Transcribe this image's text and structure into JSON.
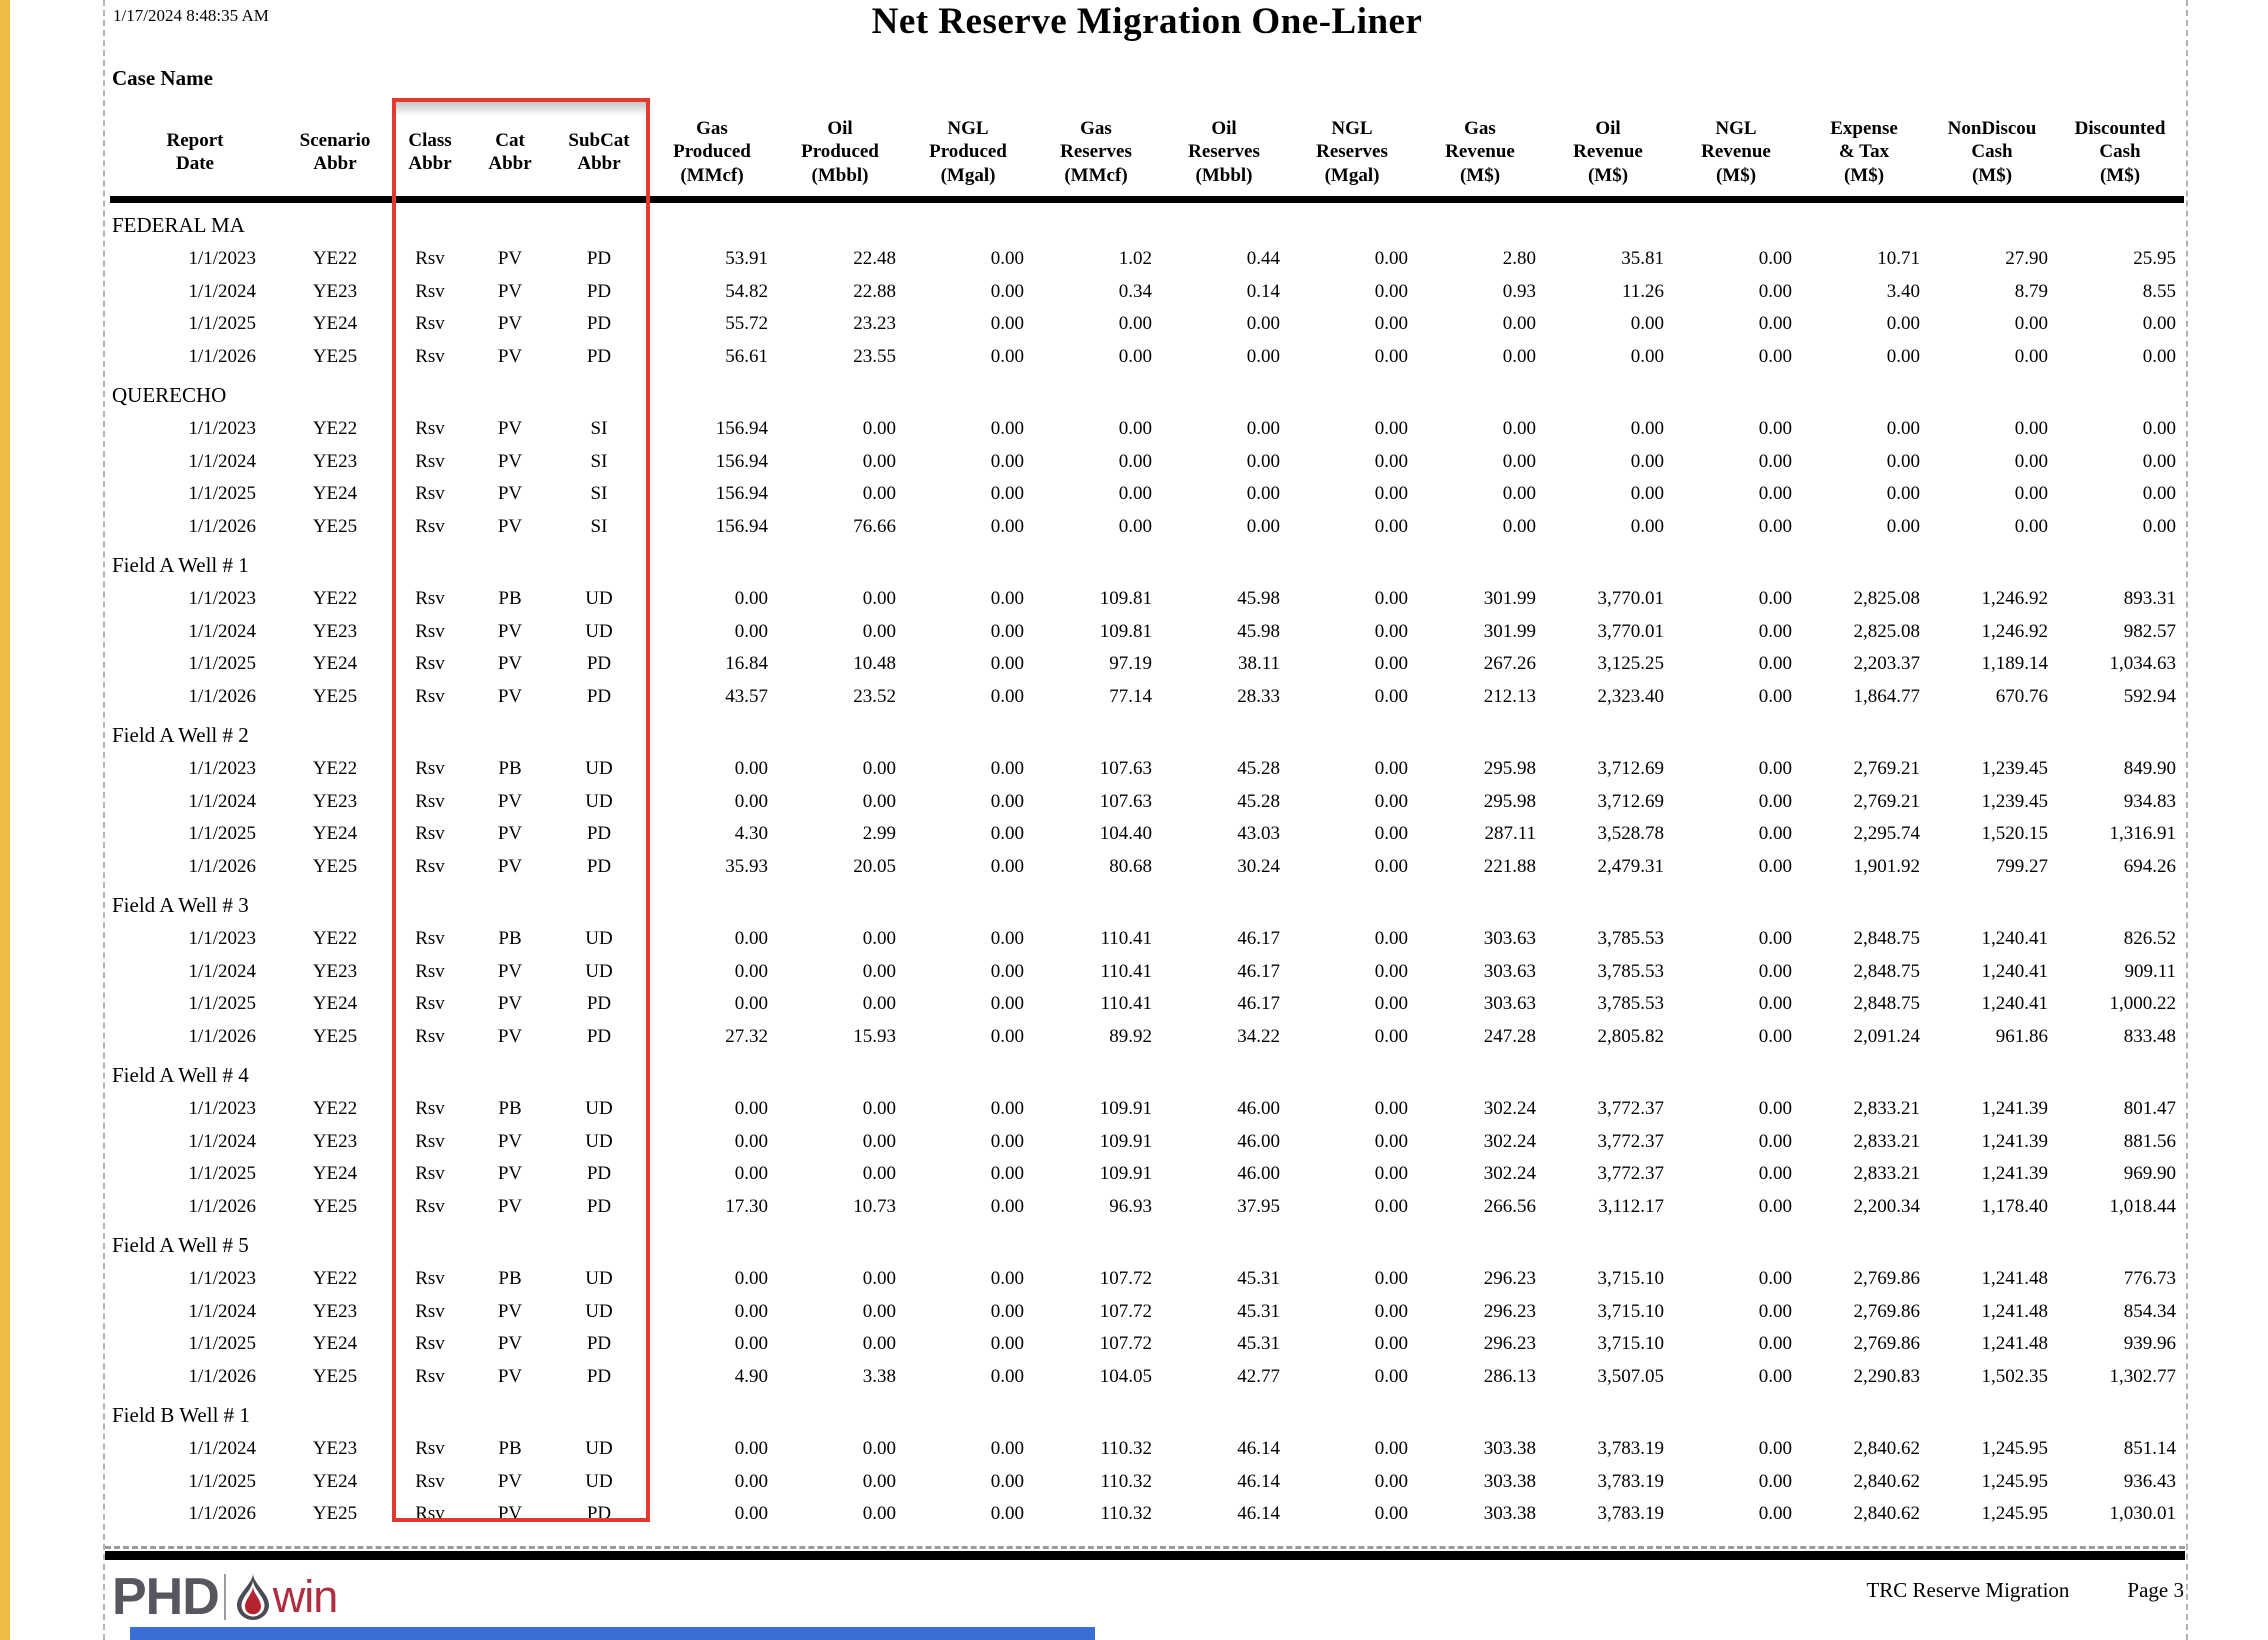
{
  "page": {
    "timestamp": "1/17/2024 8:48:35 AM",
    "title": "Net Reserve Migration One-Liner",
    "case_label": "Case Name"
  },
  "annotation": {
    "highlight_color": "#e23a2e"
  },
  "colors": {
    "accent_strip": "#eebb44",
    "bottom_bar": "#3b6ed5",
    "logo_gray": "#56565e",
    "logo_red": "#b02c3f"
  },
  "table": {
    "columns": [
      {
        "lines": [
          "Report",
          "Date"
        ]
      },
      {
        "lines": [
          "Scenario",
          "Abbr"
        ]
      },
      {
        "lines": [
          "Class",
          "Abbr"
        ]
      },
      {
        "lines": [
          "Cat",
          "Abbr"
        ]
      },
      {
        "lines": [
          "SubCat",
          "Abbr"
        ]
      },
      {
        "lines": [
          "Gas",
          "Produced",
          "(MMcf)"
        ]
      },
      {
        "lines": [
          "Oil",
          "Produced",
          "(Mbbl)"
        ]
      },
      {
        "lines": [
          "NGL",
          "Produced",
          "(Mgal)"
        ]
      },
      {
        "lines": [
          "Gas",
          "Reserves",
          "(MMcf)"
        ]
      },
      {
        "lines": [
          "Oil",
          "Reserves",
          "(Mbbl)"
        ]
      },
      {
        "lines": [
          "NGL",
          "Reserves",
          "(Mgal)"
        ]
      },
      {
        "lines": [
          "Gas",
          "Revenue",
          "(M$)"
        ]
      },
      {
        "lines": [
          "Oil",
          "Revenue",
          "(M$)"
        ]
      },
      {
        "lines": [
          "NGL",
          "Revenue",
          "(M$)"
        ]
      },
      {
        "lines": [
          "Expense",
          "& Tax",
          "(M$)"
        ]
      },
      {
        "lines": [
          "NonDiscou",
          "Cash",
          "(M$)"
        ]
      },
      {
        "lines": [
          "Discounted",
          "Cash",
          "(M$)"
        ]
      }
    ],
    "sections": [
      {
        "name": "FEDERAL MA",
        "rows": [
          [
            "1/1/2023",
            "YE22",
            "Rsv",
            "PV",
            "PD",
            "53.91",
            "22.48",
            "0.00",
            "1.02",
            "0.44",
            "0.00",
            "2.80",
            "35.81",
            "0.00",
            "10.71",
            "27.90",
            "25.95"
          ],
          [
            "1/1/2024",
            "YE23",
            "Rsv",
            "PV",
            "PD",
            "54.82",
            "22.88",
            "0.00",
            "0.34",
            "0.14",
            "0.00",
            "0.93",
            "11.26",
            "0.00",
            "3.40",
            "8.79",
            "8.55"
          ],
          [
            "1/1/2025",
            "YE24",
            "Rsv",
            "PV",
            "PD",
            "55.72",
            "23.23",
            "0.00",
            "0.00",
            "0.00",
            "0.00",
            "0.00",
            "0.00",
            "0.00",
            "0.00",
            "0.00",
            "0.00"
          ],
          [
            "1/1/2026",
            "YE25",
            "Rsv",
            "PV",
            "PD",
            "56.61",
            "23.55",
            "0.00",
            "0.00",
            "0.00",
            "0.00",
            "0.00",
            "0.00",
            "0.00",
            "0.00",
            "0.00",
            "0.00"
          ]
        ]
      },
      {
        "name": "QUERECHO",
        "rows": [
          [
            "1/1/2023",
            "YE22",
            "Rsv",
            "PV",
            "SI",
            "156.94",
            "0.00",
            "0.00",
            "0.00",
            "0.00",
            "0.00",
            "0.00",
            "0.00",
            "0.00",
            "0.00",
            "0.00",
            "0.00"
          ],
          [
            "1/1/2024",
            "YE23",
            "Rsv",
            "PV",
            "SI",
            "156.94",
            "0.00",
            "0.00",
            "0.00",
            "0.00",
            "0.00",
            "0.00",
            "0.00",
            "0.00",
            "0.00",
            "0.00",
            "0.00"
          ],
          [
            "1/1/2025",
            "YE24",
            "Rsv",
            "PV",
            "SI",
            "156.94",
            "0.00",
            "0.00",
            "0.00",
            "0.00",
            "0.00",
            "0.00",
            "0.00",
            "0.00",
            "0.00",
            "0.00",
            "0.00"
          ],
          [
            "1/1/2026",
            "YE25",
            "Rsv",
            "PV",
            "SI",
            "156.94",
            "76.66",
            "0.00",
            "0.00",
            "0.00",
            "0.00",
            "0.00",
            "0.00",
            "0.00",
            "0.00",
            "0.00",
            "0.00"
          ]
        ]
      },
      {
        "name": "Field A Well # 1",
        "rows": [
          [
            "1/1/2023",
            "YE22",
            "Rsv",
            "PB",
            "UD",
            "0.00",
            "0.00",
            "0.00",
            "109.81",
            "45.98",
            "0.00",
            "301.99",
            "3,770.01",
            "0.00",
            "2,825.08",
            "1,246.92",
            "893.31"
          ],
          [
            "1/1/2024",
            "YE23",
            "Rsv",
            "PV",
            "UD",
            "0.00",
            "0.00",
            "0.00",
            "109.81",
            "45.98",
            "0.00",
            "301.99",
            "3,770.01",
            "0.00",
            "2,825.08",
            "1,246.92",
            "982.57"
          ],
          [
            "1/1/2025",
            "YE24",
            "Rsv",
            "PV",
            "PD",
            "16.84",
            "10.48",
            "0.00",
            "97.19",
            "38.11",
            "0.00",
            "267.26",
            "3,125.25",
            "0.00",
            "2,203.37",
            "1,189.14",
            "1,034.63"
          ],
          [
            "1/1/2026",
            "YE25",
            "Rsv",
            "PV",
            "PD",
            "43.57",
            "23.52",
            "0.00",
            "77.14",
            "28.33",
            "0.00",
            "212.13",
            "2,323.40",
            "0.00",
            "1,864.77",
            "670.76",
            "592.94"
          ]
        ]
      },
      {
        "name": "Field A Well # 2",
        "rows": [
          [
            "1/1/2023",
            "YE22",
            "Rsv",
            "PB",
            "UD",
            "0.00",
            "0.00",
            "0.00",
            "107.63",
            "45.28",
            "0.00",
            "295.98",
            "3,712.69",
            "0.00",
            "2,769.21",
            "1,239.45",
            "849.90"
          ],
          [
            "1/1/2024",
            "YE23",
            "Rsv",
            "PV",
            "UD",
            "0.00",
            "0.00",
            "0.00",
            "107.63",
            "45.28",
            "0.00",
            "295.98",
            "3,712.69",
            "0.00",
            "2,769.21",
            "1,239.45",
            "934.83"
          ],
          [
            "1/1/2025",
            "YE24",
            "Rsv",
            "PV",
            "PD",
            "4.30",
            "2.99",
            "0.00",
            "104.40",
            "43.03",
            "0.00",
            "287.11",
            "3,528.78",
            "0.00",
            "2,295.74",
            "1,520.15",
            "1,316.91"
          ],
          [
            "1/1/2026",
            "YE25",
            "Rsv",
            "PV",
            "PD",
            "35.93",
            "20.05",
            "0.00",
            "80.68",
            "30.24",
            "0.00",
            "221.88",
            "2,479.31",
            "0.00",
            "1,901.92",
            "799.27",
            "694.26"
          ]
        ]
      },
      {
        "name": "Field A Well # 3",
        "rows": [
          [
            "1/1/2023",
            "YE22",
            "Rsv",
            "PB",
            "UD",
            "0.00",
            "0.00",
            "0.00",
            "110.41",
            "46.17",
            "0.00",
            "303.63",
            "3,785.53",
            "0.00",
            "2,848.75",
            "1,240.41",
            "826.52"
          ],
          [
            "1/1/2024",
            "YE23",
            "Rsv",
            "PV",
            "UD",
            "0.00",
            "0.00",
            "0.00",
            "110.41",
            "46.17",
            "0.00",
            "303.63",
            "3,785.53",
            "0.00",
            "2,848.75",
            "1,240.41",
            "909.11"
          ],
          [
            "1/1/2025",
            "YE24",
            "Rsv",
            "PV",
            "PD",
            "0.00",
            "0.00",
            "0.00",
            "110.41",
            "46.17",
            "0.00",
            "303.63",
            "3,785.53",
            "0.00",
            "2,848.75",
            "1,240.41",
            "1,000.22"
          ],
          [
            "1/1/2026",
            "YE25",
            "Rsv",
            "PV",
            "PD",
            "27.32",
            "15.93",
            "0.00",
            "89.92",
            "34.22",
            "0.00",
            "247.28",
            "2,805.82",
            "0.00",
            "2,091.24",
            "961.86",
            "833.48"
          ]
        ]
      },
      {
        "name": "Field A Well # 4",
        "rows": [
          [
            "1/1/2023",
            "YE22",
            "Rsv",
            "PB",
            "UD",
            "0.00",
            "0.00",
            "0.00",
            "109.91",
            "46.00",
            "0.00",
            "302.24",
            "3,772.37",
            "0.00",
            "2,833.21",
            "1,241.39",
            "801.47"
          ],
          [
            "1/1/2024",
            "YE23",
            "Rsv",
            "PV",
            "UD",
            "0.00",
            "0.00",
            "0.00",
            "109.91",
            "46.00",
            "0.00",
            "302.24",
            "3,772.37",
            "0.00",
            "2,833.21",
            "1,241.39",
            "881.56"
          ],
          [
            "1/1/2025",
            "YE24",
            "Rsv",
            "PV",
            "PD",
            "0.00",
            "0.00",
            "0.00",
            "109.91",
            "46.00",
            "0.00",
            "302.24",
            "3,772.37",
            "0.00",
            "2,833.21",
            "1,241.39",
            "969.90"
          ],
          [
            "1/1/2026",
            "YE25",
            "Rsv",
            "PV",
            "PD",
            "17.30",
            "10.73",
            "0.00",
            "96.93",
            "37.95",
            "0.00",
            "266.56",
            "3,112.17",
            "0.00",
            "2,200.34",
            "1,178.40",
            "1,018.44"
          ]
        ]
      },
      {
        "name": "Field A Well # 5",
        "rows": [
          [
            "1/1/2023",
            "YE22",
            "Rsv",
            "PB",
            "UD",
            "0.00",
            "0.00",
            "0.00",
            "107.72",
            "45.31",
            "0.00",
            "296.23",
            "3,715.10",
            "0.00",
            "2,769.86",
            "1,241.48",
            "776.73"
          ],
          [
            "1/1/2024",
            "YE23",
            "Rsv",
            "PV",
            "UD",
            "0.00",
            "0.00",
            "0.00",
            "107.72",
            "45.31",
            "0.00",
            "296.23",
            "3,715.10",
            "0.00",
            "2,769.86",
            "1,241.48",
            "854.34"
          ],
          [
            "1/1/2025",
            "YE24",
            "Rsv",
            "PV",
            "PD",
            "0.00",
            "0.00",
            "0.00",
            "107.72",
            "45.31",
            "0.00",
            "296.23",
            "3,715.10",
            "0.00",
            "2,769.86",
            "1,241.48",
            "939.96"
          ],
          [
            "1/1/2026",
            "YE25",
            "Rsv",
            "PV",
            "PD",
            "4.90",
            "3.38",
            "0.00",
            "104.05",
            "42.77",
            "0.00",
            "286.13",
            "3,507.05",
            "0.00",
            "2,290.83",
            "1,502.35",
            "1,302.77"
          ]
        ]
      },
      {
        "name": "Field B Well # 1",
        "rows": [
          [
            "1/1/2024",
            "YE23",
            "Rsv",
            "PB",
            "UD",
            "0.00",
            "0.00",
            "0.00",
            "110.32",
            "46.14",
            "0.00",
            "303.38",
            "3,783.19",
            "0.00",
            "2,840.62",
            "1,245.95",
            "851.14"
          ],
          [
            "1/1/2025",
            "YE24",
            "Rsv",
            "PV",
            "UD",
            "0.00",
            "0.00",
            "0.00",
            "110.32",
            "46.14",
            "0.00",
            "303.38",
            "3,783.19",
            "0.00",
            "2,840.62",
            "1,245.95",
            "936.43"
          ],
          [
            "1/1/2026",
            "YE25",
            "Rsv",
            "PV",
            "PD",
            "0.00",
            "0.00",
            "0.00",
            "110.32",
            "46.14",
            "0.00",
            "303.38",
            "3,783.19",
            "0.00",
            "2,840.62",
            "1,245.95",
            "1,030.01"
          ]
        ]
      }
    ]
  },
  "footer": {
    "logo_phd": "PHD",
    "logo_win": "win",
    "flame_icon": "flame-icon",
    "report_name": "TRC Reserve Migration",
    "page_label": "Page 3"
  }
}
